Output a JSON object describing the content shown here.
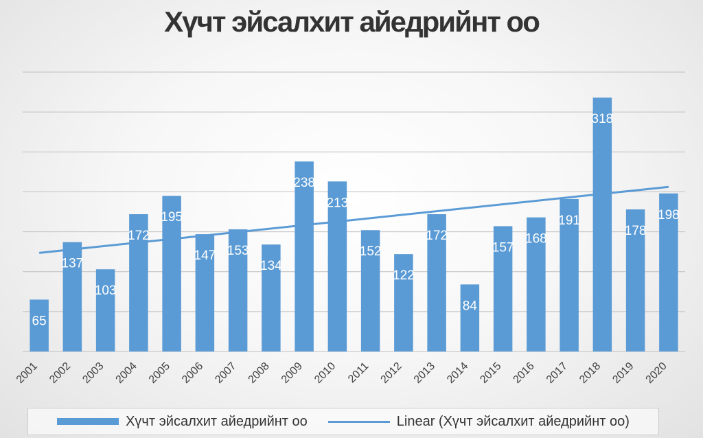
{
  "chart_data": {
    "type": "bar",
    "title": "Хүчт эйсалхит айедрийнт оо",
    "categories": [
      "2001",
      "2002",
      "2003",
      "2004",
      "2005",
      "2006",
      "2007",
      "2008",
      "2009",
      "2010",
      "2011",
      "2012",
      "2013",
      "2014",
      "2015",
      "2016",
      "2017",
      "2018",
      "2019",
      "2020"
    ],
    "series": [
      {
        "name": "Хүчт эйсалхит айедрийнт оо",
        "values": [
          65,
          137,
          103,
          172,
          195,
          147,
          153,
          134,
          238,
          213,
          152,
          122,
          172,
          84,
          157,
          168,
          191,
          318,
          178,
          198
        ]
      }
    ],
    "trendline": {
      "type": "linear",
      "name": "Linear (Хүчт эйсалхит айедрийнт оо)"
    },
    "ylim": [
      0,
      350
    ],
    "y_grid_step": 50,
    "grid": true,
    "legend_position": "bottom",
    "data_labels": true,
    "xlabel": "",
    "ylabel": "",
    "colors": {
      "bar": "#5b9bd5",
      "trend": "#5b9bd5",
      "label": "#ffffff",
      "grid": "#bfbfbf"
    }
  }
}
